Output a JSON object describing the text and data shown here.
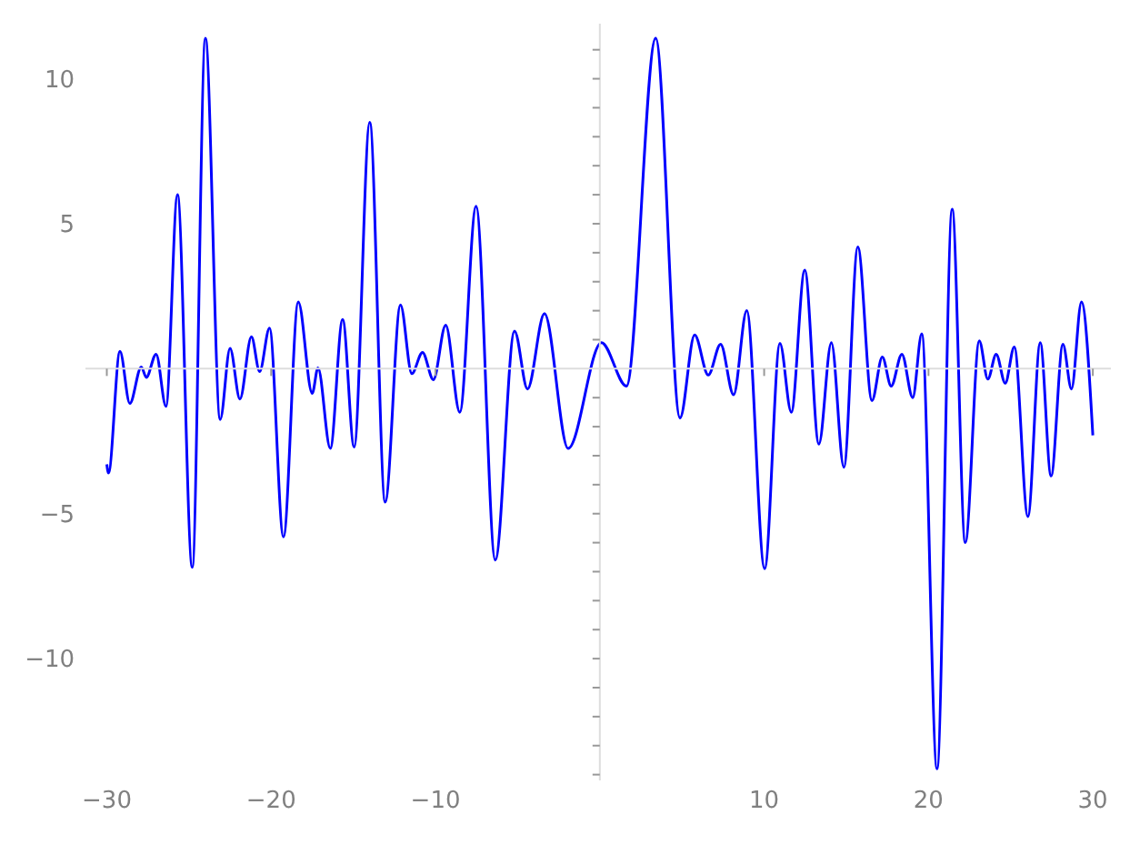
{
  "chart_data": {
    "type": "line",
    "xlim": [
      -31.3,
      31.1
    ],
    "ylim": [
      -14.2,
      11.9
    ],
    "xticks": [
      -30,
      -20,
      -10,
      10,
      20,
      30
    ],
    "yticks": [
      {
        "value": -14,
        "label": null
      },
      {
        "value": -13,
        "label": null
      },
      {
        "value": -12,
        "label": null
      },
      {
        "value": -11,
        "label": null
      },
      -10,
      {
        "value": -9,
        "label": null
      },
      {
        "value": -8,
        "label": null
      },
      {
        "value": -7,
        "label": null
      },
      {
        "value": -6,
        "label": null
      },
      -5,
      {
        "value": -4,
        "label": null
      },
      {
        "value": -3,
        "label": null
      },
      {
        "value": -2,
        "label": null
      },
      {
        "value": -1,
        "label": null
      },
      {
        "value": 1,
        "label": null
      },
      {
        "value": 2,
        "label": null
      },
      {
        "value": 3,
        "label": null
      },
      {
        "value": 4,
        "label": null
      },
      5,
      {
        "value": 6,
        "label": null
      },
      {
        "value": 7,
        "label": null
      },
      {
        "value": 8,
        "label": null
      },
      {
        "value": 9,
        "label": null
      },
      10,
      {
        "value": 11,
        "label": null
      }
    ],
    "grid": false,
    "legend": false,
    "marker": "none",
    "line_style": "solid",
    "series": [
      {
        "color": "#0000ff",
        "x": [
          -30.0,
          -29.9,
          -29.2,
          -28.6,
          -27.9,
          -27.6,
          -27.0,
          -26.4,
          -25.7,
          -24.8,
          -24.0,
          -23.1,
          -22.5,
          -21.9,
          -21.2,
          -20.7,
          -20.1,
          -19.25,
          -18.35,
          -17.5,
          -17.15,
          -16.4,
          -15.65,
          -14.95,
          -14.0,
          -13.06,
          -12.13,
          -11.44,
          -10.79,
          -10.13,
          -9.38,
          -8.52,
          -7.53,
          -6.36,
          -5.19,
          -4.4,
          -3.37,
          -1.93,
          0.1,
          1.62,
          3.4,
          4.88,
          5.77,
          6.6,
          7.35,
          8.14,
          8.94,
          10.03,
          10.96,
          11.65,
          12.47,
          13.33,
          14.09,
          14.85,
          15.7,
          16.56,
          17.19,
          17.73,
          18.38,
          19.04,
          19.59,
          20.52,
          21.44,
          22.24,
          23.09,
          23.61,
          24.12,
          24.67,
          25.22,
          26.05,
          26.8,
          27.46,
          28.18,
          28.7,
          29.31,
          30.0
        ],
        "values": [
          -3.3,
          -3.6,
          0.6,
          -1.2,
          0.06,
          -0.3,
          0.5,
          -1.3,
          6.0,
          -6.85,
          11.4,
          -1.75,
          0.7,
          -1.05,
          1.1,
          -0.1,
          1.4,
          -5.8,
          2.3,
          -0.85,
          0.03,
          -2.75,
          1.7,
          -2.7,
          8.5,
          -4.6,
          2.2,
          -0.17,
          0.56,
          -0.38,
          1.5,
          -1.5,
          5.6,
          -6.6,
          1.3,
          -0.7,
          1.9,
          -2.75,
          0.9,
          -0.6,
          11.4,
          -1.7,
          1.16,
          -0.22,
          0.84,
          -0.9,
          2.0,
          -6.9,
          0.87,
          -1.5,
          3.4,
          -2.6,
          0.9,
          -3.4,
          4.2,
          -1.1,
          0.4,
          -0.6,
          0.5,
          -1.0,
          1.2,
          -13.8,
          5.5,
          -6.0,
          0.96,
          -0.36,
          0.5,
          -0.5,
          0.75,
          -5.1,
          0.9,
          -3.7,
          0.84,
          -0.7,
          2.3,
          -2.3
        ]
      }
    ]
  }
}
